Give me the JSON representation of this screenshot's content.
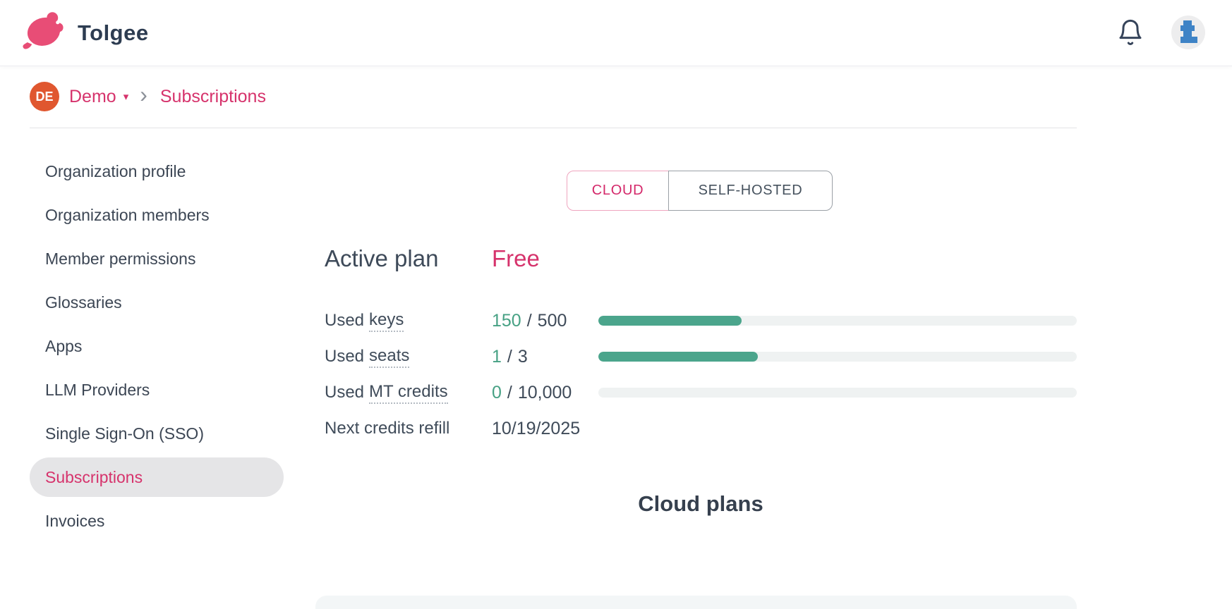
{
  "header": {
    "brand": "Tolgee"
  },
  "breadcrumb": {
    "org_avatar_initials": "DE",
    "org_name": "Demo",
    "caret": "▾",
    "separator": "›",
    "current_page": "Subscriptions"
  },
  "sidebar": {
    "items": [
      {
        "label": "Organization profile",
        "active": false
      },
      {
        "label": "Organization members",
        "active": false
      },
      {
        "label": "Member permissions",
        "active": false
      },
      {
        "label": "Glossaries",
        "active": false
      },
      {
        "label": "Apps",
        "active": false
      },
      {
        "label": "LLM Providers",
        "active": false
      },
      {
        "label": "Single Sign-On (SSO)",
        "active": false
      },
      {
        "label": "Subscriptions",
        "active": true
      },
      {
        "label": "Invoices",
        "active": false
      }
    ]
  },
  "plan_type_toggle": {
    "options": [
      {
        "label": "CLOUD",
        "selected": true
      },
      {
        "label": "SELF-HOSTED",
        "selected": false
      }
    ]
  },
  "active_plan": {
    "label": "Active plan",
    "plan_name": "Free"
  },
  "usage": {
    "rows": [
      {
        "label": "Used",
        "term": "keys",
        "used": "150",
        "separator": "/",
        "limit": "500",
        "percent": 30
      },
      {
        "label": "Used",
        "term": "seats",
        "used": "1",
        "separator": "/",
        "limit": "3",
        "percent": 33.3
      },
      {
        "label": "Used",
        "term": "MT credits",
        "used": "0",
        "separator": "/",
        "limit": "10,000",
        "percent": 0
      }
    ],
    "refill": {
      "label": "Next credits refill",
      "value": "10/19/2025"
    }
  },
  "cloud_plans": {
    "title": "Cloud plans"
  },
  "colors": {
    "accent_pink": "#d6336c",
    "progress_teal": "#4ba58c",
    "org_avatar_orange": "#e0572f",
    "user_avatar_blue": "#3e83c6",
    "active_item_bg": "#e5e5e7"
  }
}
